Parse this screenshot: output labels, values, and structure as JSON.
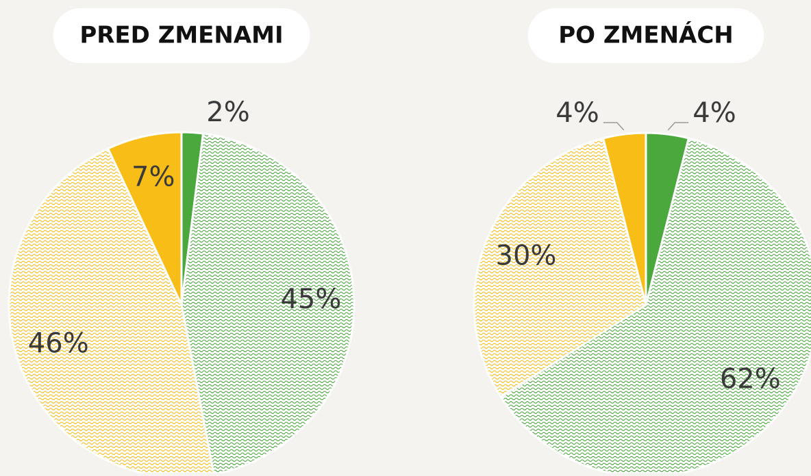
{
  "chart_data": [
    {
      "type": "pie",
      "title": "PRED ZMENAMI",
      "categories": [
        null,
        null,
        null,
        null
      ],
      "values": [
        2,
        45,
        46,
        7
      ],
      "value_labels": [
        "2%",
        "45%",
        "46%",
        "7%"
      ],
      "colors": [
        "#4aa83c",
        "#4aa83c",
        "#f9bd18",
        "#f9bd18"
      ],
      "hatched": [
        false,
        true,
        true,
        false
      ]
    },
    {
      "type": "pie",
      "title": "PO ZMENÁCH",
      "categories": [
        null,
        null,
        null,
        null
      ],
      "values": [
        4,
        62,
        30,
        4
      ],
      "value_labels": [
        "4%",
        "62%",
        "30%",
        "4%"
      ],
      "colors": [
        "#4aa83c",
        "#4aa83c",
        "#f9bd18",
        "#f9bd18"
      ],
      "hatched": [
        false,
        true,
        true,
        false
      ]
    }
  ]
}
